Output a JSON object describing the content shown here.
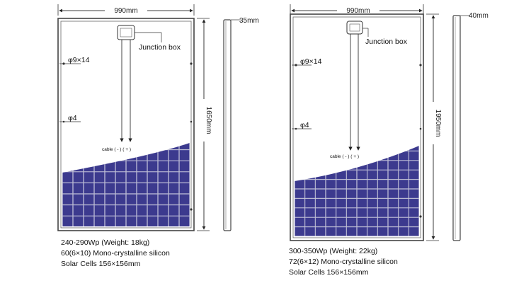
{
  "panels": [
    {
      "width_label": "990mm",
      "height_label": "1650mm",
      "thickness_label": "35mm",
      "junction_box_label": "Junction box",
      "hole_large_label": "φ9×14",
      "hole_small_label": "φ4",
      "cable_label": "cable ( - ) ( + )",
      "specs": [
        "240-290Wp (Weight: 18kg)",
        "60(6×10) Mono-crystalline silicon",
        "Solar Cells 156×156mm"
      ],
      "cell_cols": 6,
      "cell_rows": 10
    },
    {
      "width_label": "990mm",
      "height_label": "1950mm",
      "thickness_label": "40mm",
      "junction_box_label": "Junction box",
      "hole_large_label": "φ9×14",
      "hole_small_label": "φ4",
      "cable_label": "cable ( - ) ( + )",
      "specs": [
        "300-350Wp (Weight: 22kg)",
        "72(6×12) Mono-crystalline silicon",
        "Solar Cells 156×156mm"
      ],
      "cell_cols": 6,
      "cell_rows": 12
    }
  ],
  "colors": {
    "cell": "#3c3a8e",
    "cell_edge": "#6d6cb8",
    "frame": "#555555",
    "gap": "#c8c8d4"
  }
}
